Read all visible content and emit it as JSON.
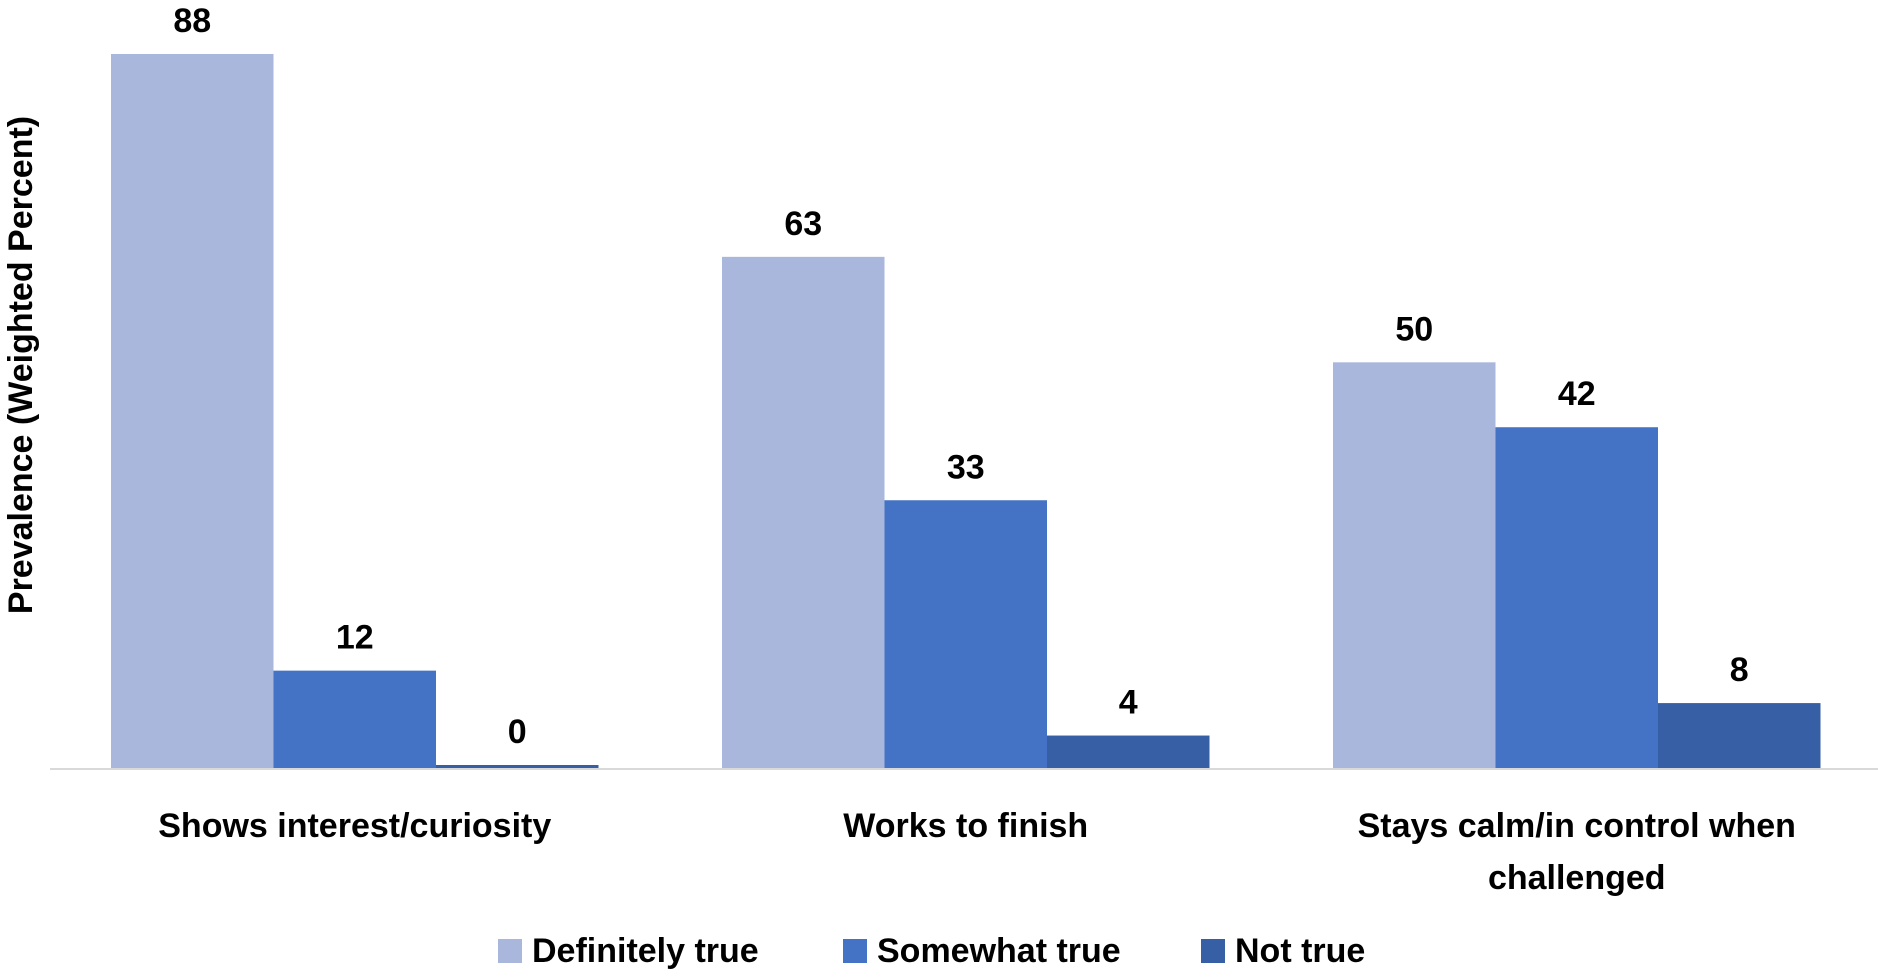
{
  "chart_data": {
    "type": "bar",
    "title": "",
    "xlabel": "",
    "ylabel": "Prevalence (Weighted Percent)",
    "categories": [
      [
        "Shows interest/curiosity"
      ],
      [
        "Works to finish"
      ],
      [
        "Stays calm/in control when",
        "challenged"
      ]
    ],
    "series": [
      {
        "name": "Definitely true",
        "color": "#A9B7DC",
        "values": [
          88,
          63,
          50
        ]
      },
      {
        "name": "Somewhat true",
        "color": "#4472C4",
        "values": [
          12,
          33,
          42
        ]
      },
      {
        "name": "Not true",
        "color": "#365FA5",
        "values": [
          0,
          4,
          8
        ]
      }
    ],
    "ylim": [
      0,
      88
    ],
    "grid": false,
    "legend_position": "bottom",
    "axis_line_color": "#D9D9D9"
  }
}
